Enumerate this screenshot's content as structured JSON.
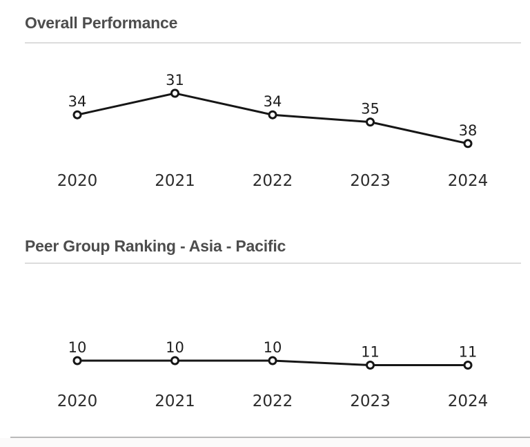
{
  "page": {
    "background": "#ffffff",
    "title_color": "#4d4d4d",
    "divider_color": "#dcdcdc",
    "bottom_divider_color": "#b9b9b9"
  },
  "chart_data": [
    {
      "type": "line",
      "title": "Overall Performance",
      "categories": [
        "2020",
        "2021",
        "2022",
        "2023",
        "2024"
      ],
      "values": [
        34,
        31,
        34,
        35,
        38
      ],
      "point_labels": [
        "34",
        "31",
        "34",
        "35",
        "38"
      ],
      "y_axis_inverted": true,
      "axes_hidden": true,
      "grid": false,
      "legend": "none",
      "line_color": "#161616",
      "marker": "open-circle",
      "marker_fill": "#ffffff",
      "label_color": "#1e1e1e"
    },
    {
      "type": "line",
      "title": "Peer Group Ranking - Asia - Pacific",
      "categories": [
        "2020",
        "2021",
        "2022",
        "2023",
        "2024"
      ],
      "values": [
        10,
        10,
        10,
        11,
        11
      ],
      "point_labels": [
        "10",
        "10",
        "10",
        "11",
        "11"
      ],
      "y_axis_inverted": true,
      "axes_hidden": true,
      "grid": false,
      "legend": "none",
      "line_color": "#161616",
      "marker": "open-circle",
      "marker_fill": "#ffffff",
      "label_color": "#1e1e1e"
    }
  ]
}
